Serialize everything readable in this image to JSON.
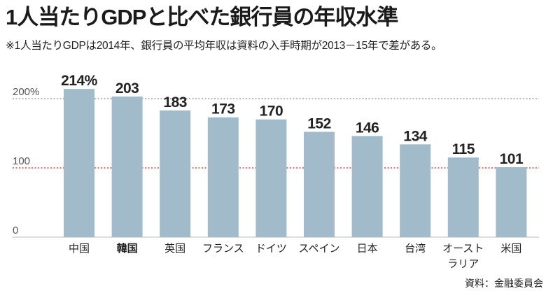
{
  "chart_data": {
    "type": "bar",
    "title": "1人当たりGDPと比べた銀行員の年収水準",
    "subtitle": "※1人当たりGDPは2014年、銀行員の平均年収は資料の入手時期が2013－15年で差がある。",
    "source": "資料：金融委員会",
    "categories": [
      "中国",
      "韓国",
      "英国",
      "フランス",
      "ドイツ",
      "スペイン",
      "日本",
      "台湾",
      "オースト\nラリア",
      "米国"
    ],
    "values": [
      214,
      203,
      183,
      173,
      170,
      152,
      146,
      134,
      115,
      101
    ],
    "data_labels": [
      "214%",
      "203",
      "183",
      "173",
      "170",
      "152",
      "146",
      "134",
      "115",
      "101"
    ],
    "highlighted_category_index": 1,
    "yticks": [
      {
        "value": 200,
        "label": "200%"
      },
      {
        "value": 100,
        "label": "100"
      },
      {
        "value": 0,
        "label": "0"
      }
    ],
    "reference_lines": [
      {
        "value": 200,
        "color": "#9b9b9b"
      },
      {
        "value": 100,
        "color": "#e2473d"
      }
    ],
    "ylim": [
      0,
      220
    ],
    "bar_color": "#a1bbcb"
  }
}
